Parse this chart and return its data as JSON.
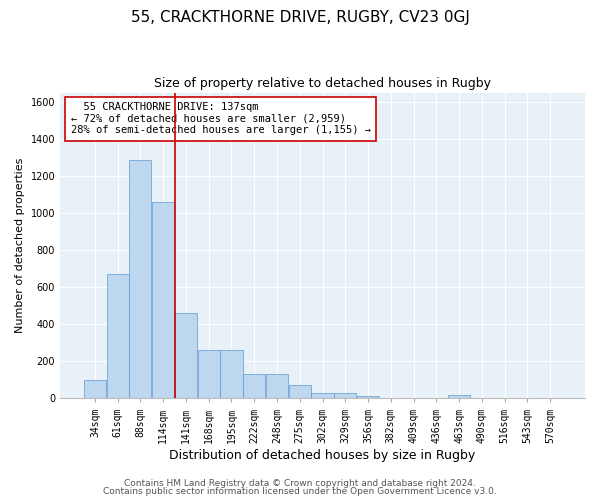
{
  "title1": "55, CRACKTHORNE DRIVE, RUGBY, CV23 0GJ",
  "title2": "Size of property relative to detached houses in Rugby",
  "xlabel": "Distribution of detached houses by size in Rugby",
  "ylabel": "Number of detached properties",
  "categories": [
    "34sqm",
    "61sqm",
    "88sqm",
    "114sqm",
    "141sqm",
    "168sqm",
    "195sqm",
    "222sqm",
    "248sqm",
    "275sqm",
    "302sqm",
    "329sqm",
    "356sqm",
    "382sqm",
    "409sqm",
    "436sqm",
    "463sqm",
    "490sqm",
    "516sqm",
    "543sqm",
    "570sqm"
  ],
  "values": [
    100,
    670,
    1290,
    1060,
    460,
    260,
    260,
    130,
    130,
    70,
    30,
    30,
    10,
    0,
    0,
    0,
    20,
    0,
    0,
    0,
    0
  ],
  "bar_color": "#bdd7ee",
  "bar_edge_color": "#5b9bd5",
  "vline_color": "#cc0000",
  "vline_x": 3.5,
  "annotation_text": "  55 CRACKTHORNE DRIVE: 137sqm\n← 72% of detached houses are smaller (2,959)\n28% of semi-detached houses are larger (1,155) →",
  "annotation_box_color": "#ffffff",
  "annotation_box_edge": "#cc0000",
  "ylim": [
    0,
    1650
  ],
  "yticks": [
    0,
    200,
    400,
    600,
    800,
    1000,
    1200,
    1400,
    1600
  ],
  "bg_color": "#e8f1f8",
  "footer1": "Contains HM Land Registry data © Crown copyright and database right 2024.",
  "footer2": "Contains public sector information licensed under the Open Government Licence v3.0.",
  "title1_fontsize": 11,
  "title2_fontsize": 9,
  "xlabel_fontsize": 9,
  "ylabel_fontsize": 8,
  "tick_fontsize": 7,
  "annotation_fontsize": 7.5,
  "footer_fontsize": 6.5
}
